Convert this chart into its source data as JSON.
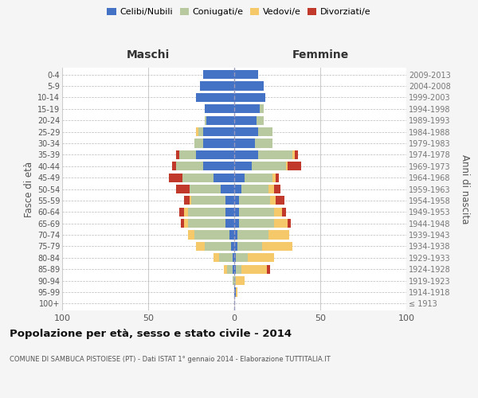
{
  "age_groups": [
    "100+",
    "95-99",
    "90-94",
    "85-89",
    "80-84",
    "75-79",
    "70-74",
    "65-69",
    "60-64",
    "55-59",
    "50-54",
    "45-49",
    "40-44",
    "35-39",
    "30-34",
    "25-29",
    "20-24",
    "15-19",
    "10-14",
    "5-9",
    "0-4"
  ],
  "birth_years": [
    "≤ 1913",
    "1914-1918",
    "1919-1923",
    "1924-1928",
    "1929-1933",
    "1934-1938",
    "1939-1943",
    "1944-1948",
    "1949-1953",
    "1954-1958",
    "1959-1963",
    "1964-1968",
    "1969-1973",
    "1974-1978",
    "1979-1983",
    "1984-1988",
    "1989-1993",
    "1994-1998",
    "1999-2003",
    "2004-2008",
    "2009-2013"
  ],
  "maschi": {
    "celibi": [
      0,
      0,
      0,
      1,
      1,
      2,
      3,
      5,
      5,
      5,
      8,
      12,
      18,
      22,
      18,
      18,
      16,
      17,
      22,
      20,
      18
    ],
    "coniugati": [
      0,
      0,
      1,
      3,
      8,
      15,
      20,
      22,
      22,
      20,
      18,
      18,
      16,
      10,
      5,
      3,
      1,
      0,
      0,
      0,
      0
    ],
    "vedovi": [
      0,
      0,
      0,
      2,
      3,
      5,
      4,
      2,
      2,
      1,
      0,
      0,
      0,
      0,
      0,
      1,
      0,
      0,
      0,
      0,
      0
    ],
    "divorziati": [
      0,
      0,
      0,
      0,
      0,
      0,
      0,
      2,
      3,
      3,
      8,
      8,
      2,
      2,
      0,
      0,
      0,
      0,
      0,
      0,
      0
    ]
  },
  "femmine": {
    "nubili": [
      0,
      1,
      0,
      1,
      1,
      2,
      2,
      3,
      3,
      3,
      4,
      6,
      10,
      14,
      12,
      14,
      13,
      15,
      18,
      17,
      14
    ],
    "coniugate": [
      0,
      0,
      1,
      3,
      7,
      14,
      18,
      20,
      20,
      18,
      16,
      16,
      20,
      20,
      10,
      8,
      4,
      2,
      0,
      0,
      0
    ],
    "vedove": [
      0,
      1,
      5,
      15,
      15,
      18,
      12,
      8,
      5,
      3,
      3,
      2,
      1,
      1,
      0,
      0,
      0,
      0,
      0,
      0,
      0
    ],
    "divorziate": [
      0,
      0,
      0,
      2,
      0,
      0,
      0,
      2,
      2,
      5,
      4,
      2,
      8,
      2,
      0,
      0,
      0,
      0,
      0,
      0,
      0
    ]
  },
  "colors": {
    "celibi_nubili": "#4472c4",
    "coniugati": "#b8c9a0",
    "vedovi": "#f5c96a",
    "divorziati": "#c0392b"
  },
  "xlim": 100,
  "title": "Popolazione per età, sesso e stato civile - 2014",
  "subtitle": "COMUNE DI SAMBUCA PISTOIESE (PT) - Dati ISTAT 1° gennaio 2014 - Elaborazione TUTTITALIA.IT",
  "ylabel_left": "Fasce di età",
  "ylabel_right": "Anni di nascita",
  "xlabel_left": "Maschi",
  "xlabel_right": "Femmine",
  "bg_color": "#f5f5f5",
  "plot_bg": "#ffffff",
  "grid_color": "#cccccc"
}
